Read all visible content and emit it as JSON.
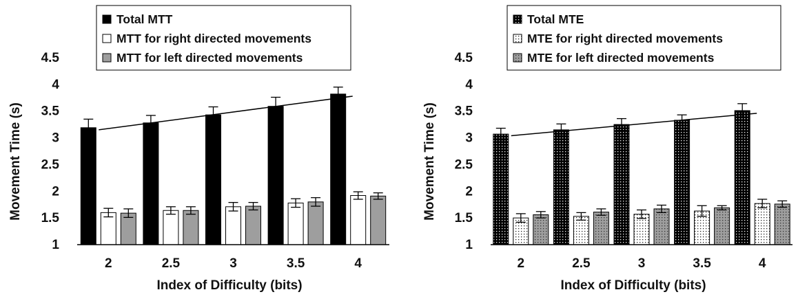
{
  "chart_data": [
    {
      "type": "bar",
      "categories": [
        "2",
        "2.5",
        "3",
        "3.5",
        "4"
      ],
      "xlabel": "Index of Difficulty (bits)",
      "ylabel": "Movement Time (s)",
      "ylim": [
        1,
        4.5
      ],
      "yticks": [
        "1",
        "1.5",
        "2",
        "2.5",
        "3",
        "3.5",
        "4",
        "4.5"
      ],
      "grid": false,
      "legend_position": "top",
      "series": [
        {
          "name": "Total MTT",
          "values": [
            3.19,
            3.28,
            3.43,
            3.59,
            3.82
          ],
          "errors": [
            0.16,
            0.14,
            0.15,
            0.17,
            0.13
          ],
          "color": "#000000",
          "pattern": "solid"
        },
        {
          "name": "MTT for right directed movements",
          "values": [
            1.6,
            1.64,
            1.71,
            1.78,
            1.92
          ],
          "errors": [
            0.08,
            0.07,
            0.08,
            0.08,
            0.07
          ],
          "color": "#ffffff",
          "pattern": "solid"
        },
        {
          "name": "MTT for left directed movements",
          "values": [
            1.59,
            1.64,
            1.72,
            1.8,
            1.91
          ],
          "errors": [
            0.08,
            0.07,
            0.07,
            0.08,
            0.06
          ],
          "color": "#9e9e9e",
          "pattern": "solid"
        }
      ],
      "trendline": {
        "x_start": "2",
        "y_start": 3.15,
        "x_end": "4",
        "y_end": 3.78
      }
    },
    {
      "type": "bar",
      "categories": [
        "2",
        "2.5",
        "3",
        "3.5",
        "4"
      ],
      "xlabel": "Index of Difficulty (bits)",
      "ylabel": "Movement Time (s)",
      "ylim": [
        1,
        4.5
      ],
      "yticks": [
        "1",
        "1.5",
        "2",
        "2.5",
        "3",
        "3.5",
        "4",
        "4.5"
      ],
      "grid": false,
      "legend_position": "top",
      "series": [
        {
          "name": "Total MTE",
          "values": [
            3.07,
            3.15,
            3.25,
            3.33,
            3.51
          ],
          "errors": [
            0.11,
            0.11,
            0.11,
            0.1,
            0.13
          ],
          "color": "#000000",
          "pattern": "dotted"
        },
        {
          "name": "MTE for right directed movements",
          "values": [
            1.5,
            1.53,
            1.57,
            1.63,
            1.77
          ],
          "errors": [
            0.08,
            0.07,
            0.08,
            0.1,
            0.08
          ],
          "color": "#ffffff",
          "pattern": "dotted"
        },
        {
          "name": "MTE for left directed movements",
          "values": [
            1.56,
            1.61,
            1.67,
            1.69,
            1.76
          ],
          "errors": [
            0.06,
            0.06,
            0.07,
            0.04,
            0.06
          ],
          "color": "#9e9e9e",
          "pattern": "dotted"
        }
      ],
      "trendline": {
        "x_start": "2",
        "y_start": 3.04,
        "x_end": "4",
        "y_end": 3.46
      }
    }
  ]
}
